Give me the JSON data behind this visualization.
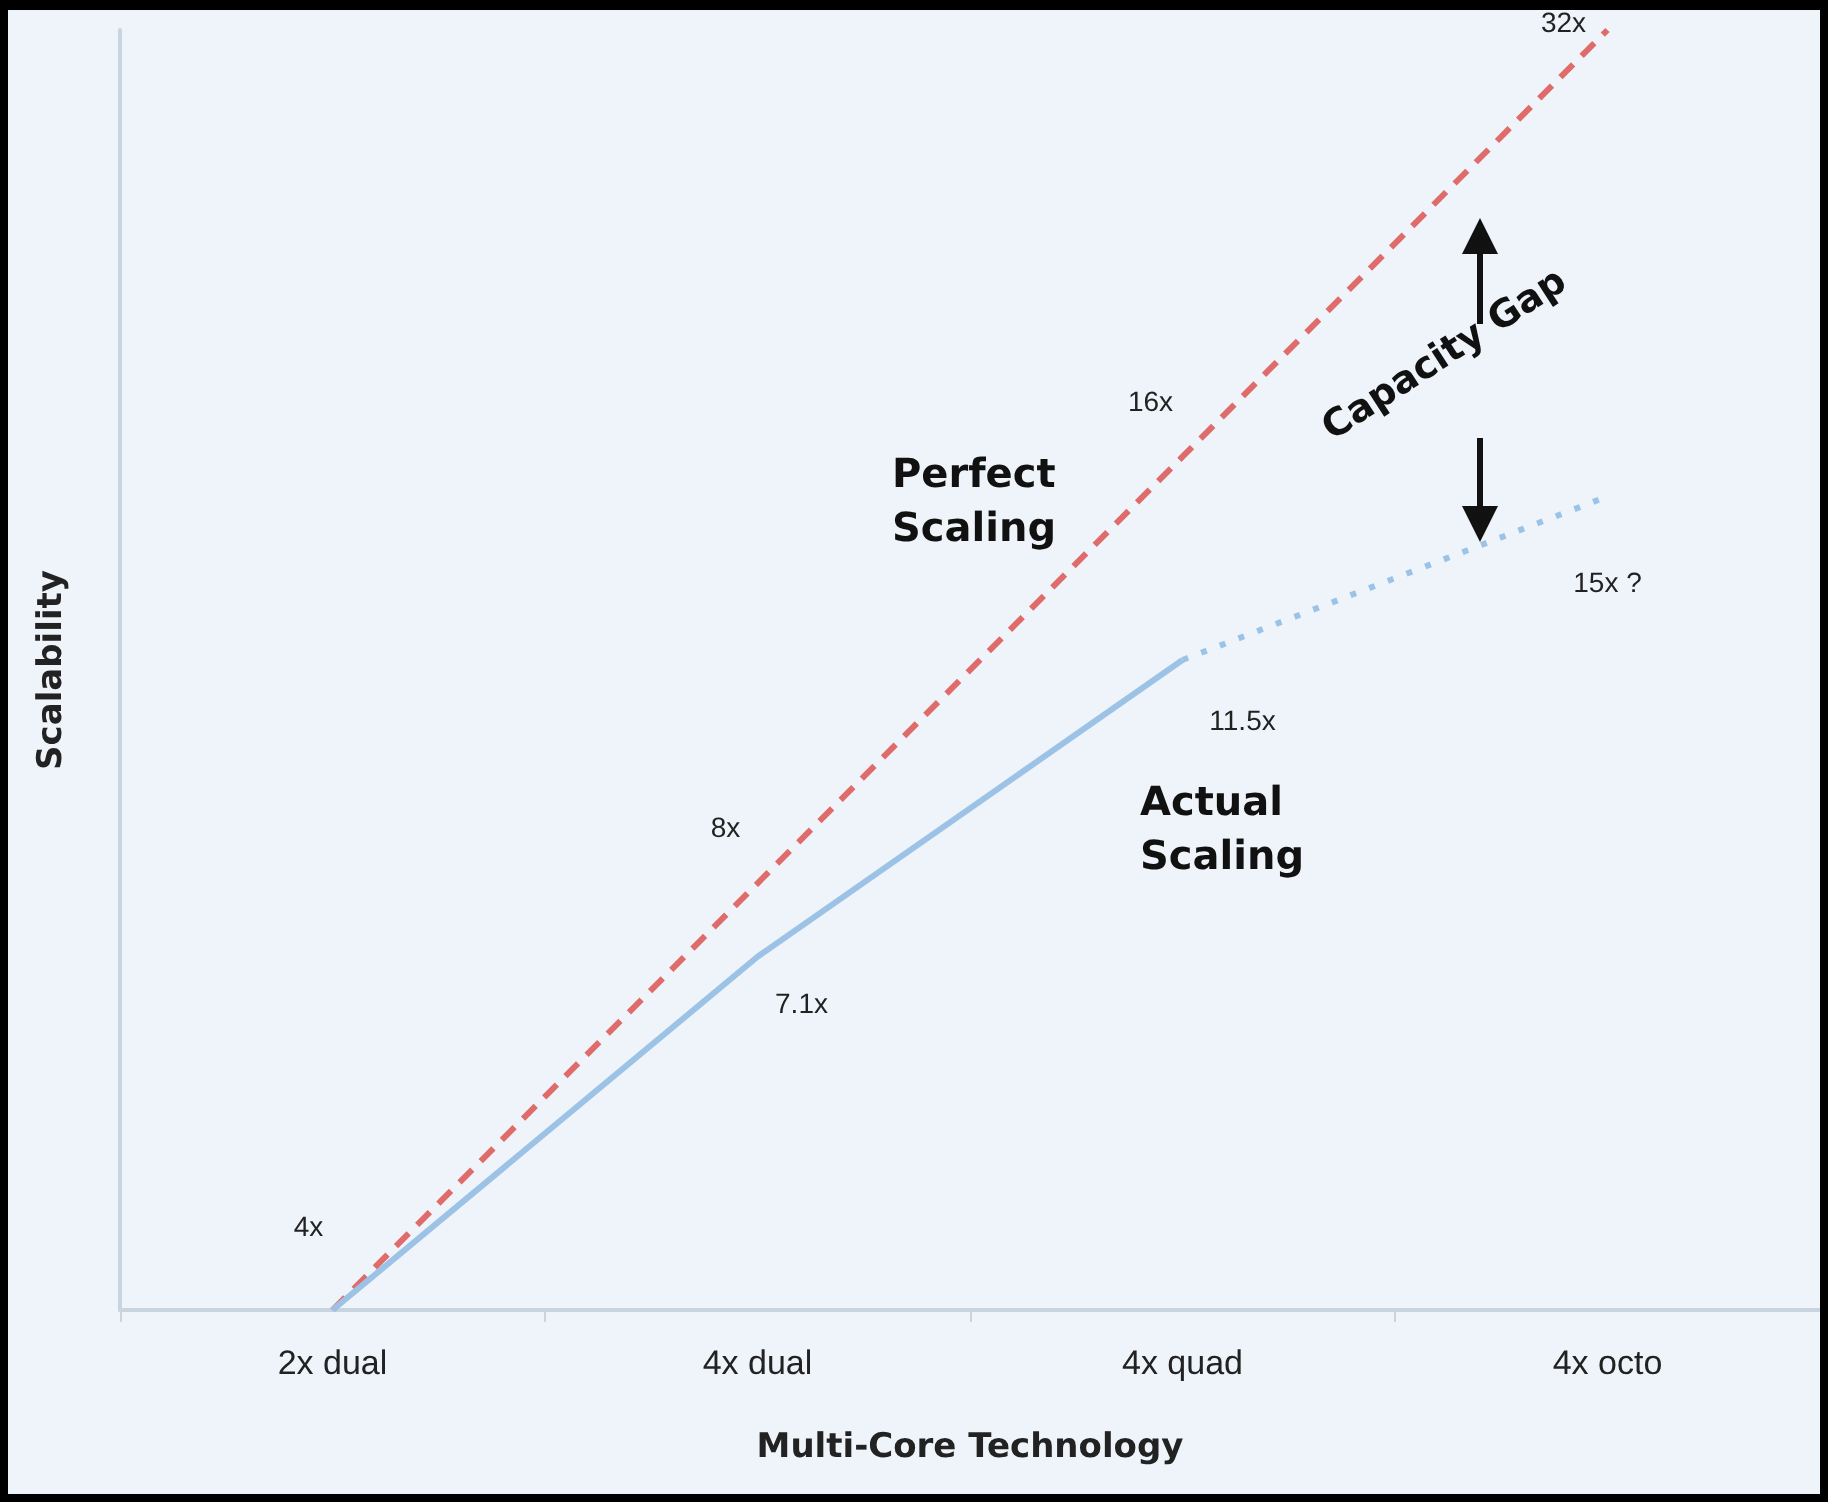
{
  "chart_data": {
    "type": "line",
    "xlabel": "Multi-Core Technology",
    "ylabel": "Scalability",
    "categories": [
      "2x dual",
      "4x dual",
      "4x quad",
      "4x octo"
    ],
    "series": [
      {
        "name": "Perfect Scaling",
        "color": "#e06b6b",
        "line_style": "dashed",
        "values": [
          4,
          8,
          16,
          32
        ],
        "value_labels": [
          "4x",
          "8x",
          "16x",
          "32x"
        ]
      },
      {
        "name": "Actual Scaling",
        "color": "#9cc3e6",
        "line_style": "solid",
        "values": [
          4,
          7.1,
          11.5,
          null
        ],
        "value_labels": [
          null,
          "7.1x",
          "11.5x",
          null
        ]
      },
      {
        "color": "#9cc3e6",
        "line_style": "dotted",
        "values": [
          null,
          null,
          11.5,
          15
        ],
        "value_labels": [
          null,
          null,
          null,
          "15x ?"
        ]
      }
    ],
    "log": true,
    "ylim": [
      4,
      32
    ],
    "tick_labels": "x",
    "marker": "none",
    "grid": false,
    "legend": false,
    "annotations": [
      "Capacity Gap"
    ]
  }
}
